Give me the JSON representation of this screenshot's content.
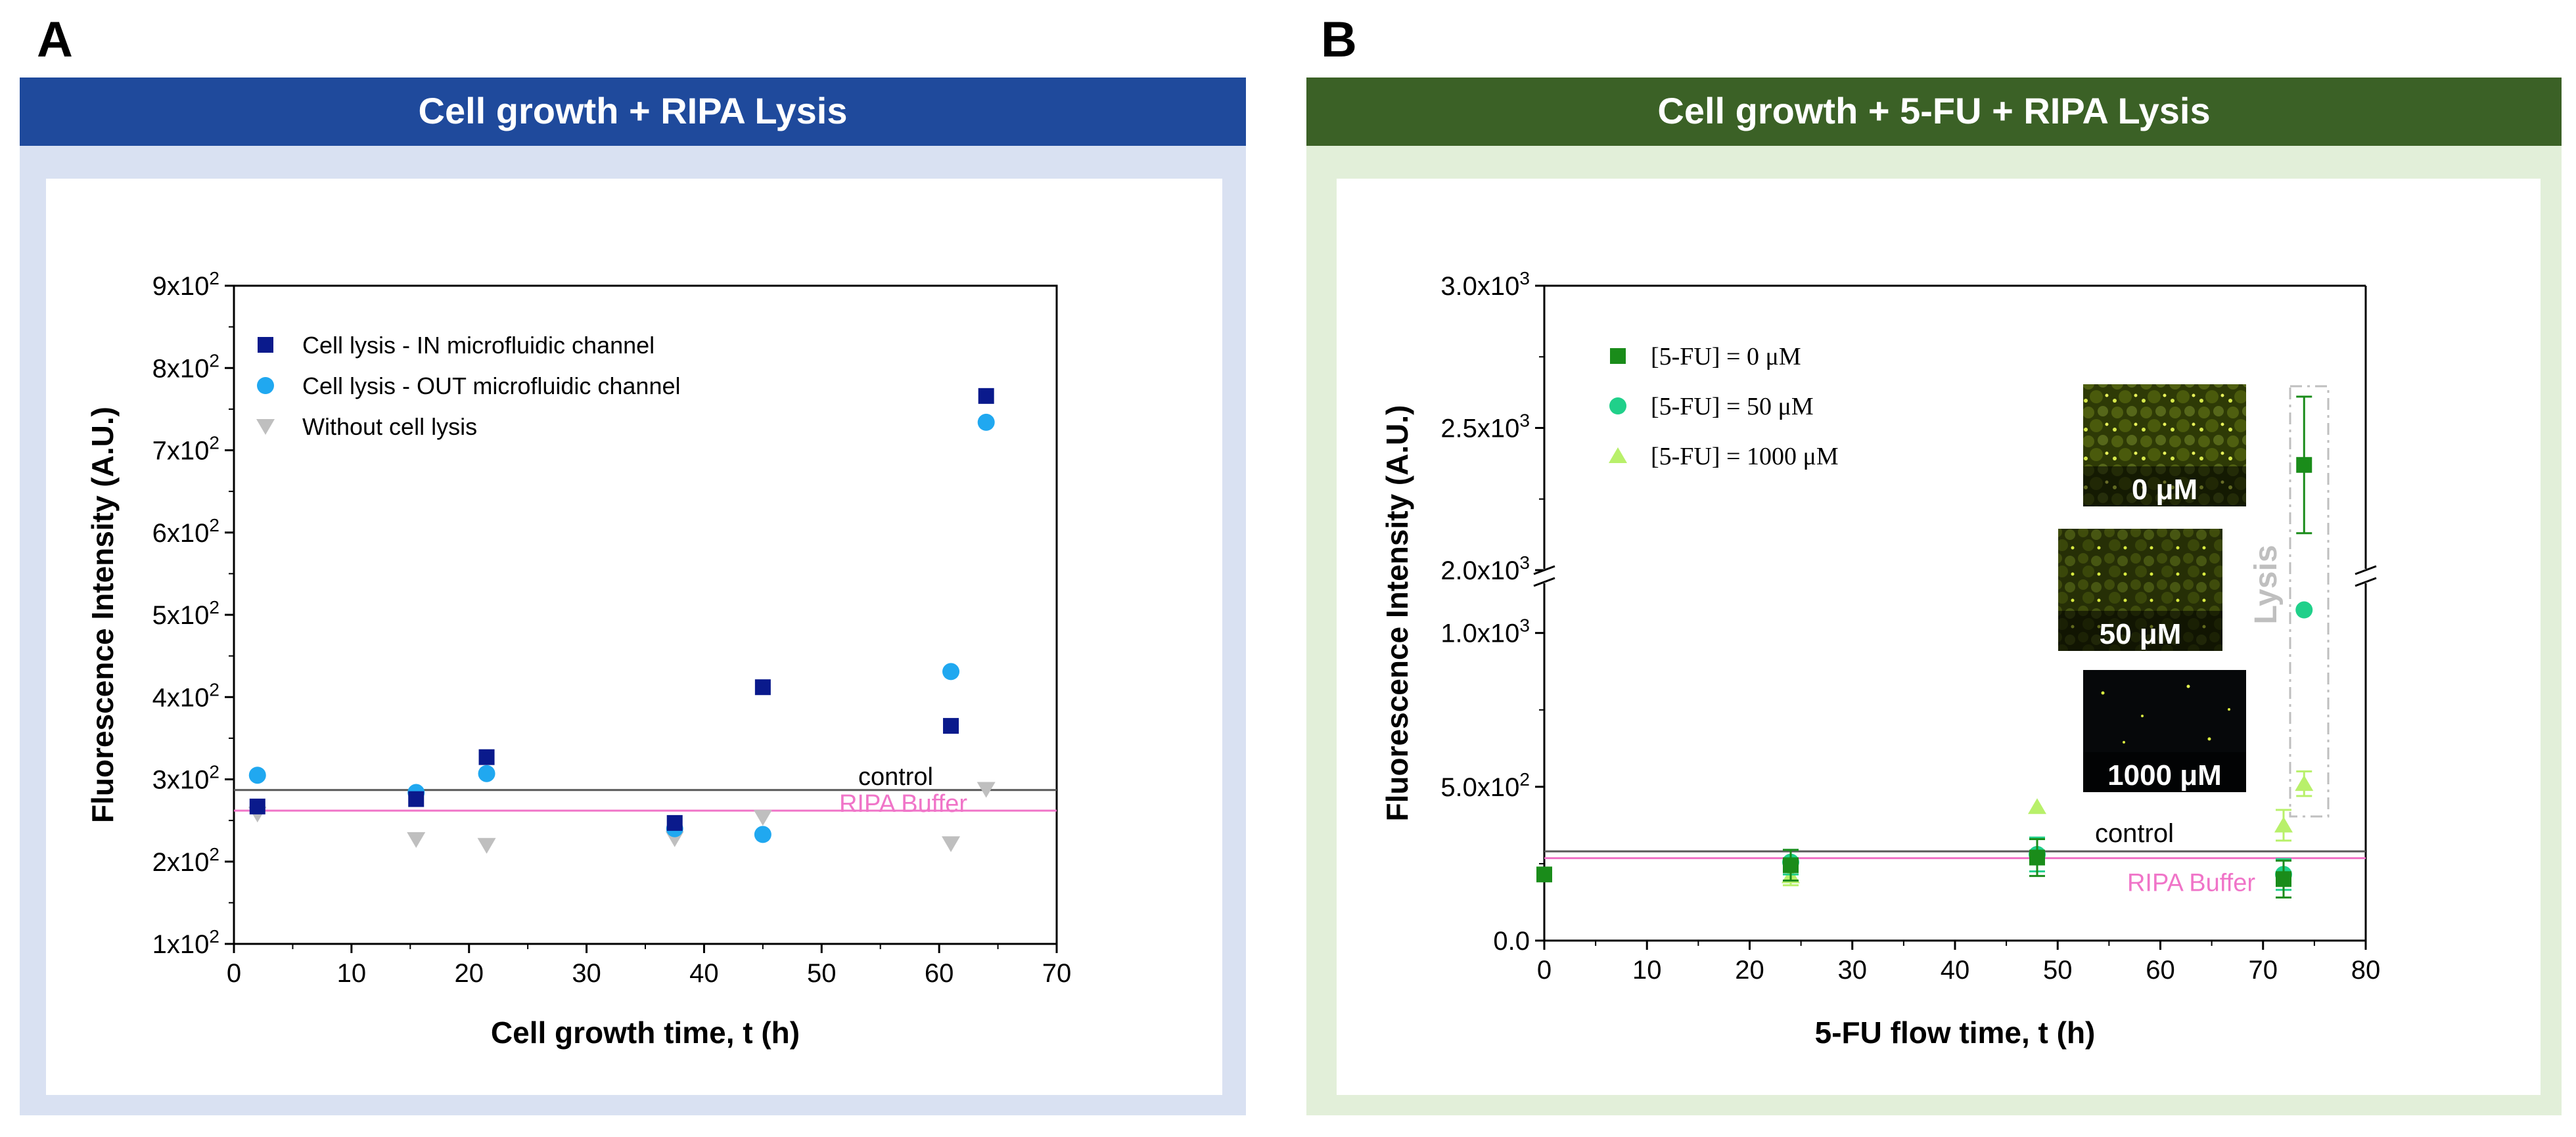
{
  "colors": {
    "panelA_header": "#1f4a9c",
    "panelA_frame": "#d9e1f2",
    "panelB_header": "#3b6126",
    "panelB_frame": "#e2efd9",
    "control_line": "#595959",
    "ripa_line": "#f074c8",
    "ripa_text": "#f074c8",
    "lysis_label": "#bfbfbf",
    "A_in": "#0a1a8c",
    "A_out": "#20a8f0",
    "A_without": "#bfbfbf",
    "B_0": "#1a8c1a",
    "B_50": "#20d08a",
    "B_1000": "#b8f06a"
  },
  "panel_a": {
    "letter": "A",
    "header": "Cell growth + RIPA Lysis"
  },
  "panel_b": {
    "letter": "B",
    "header": "Cell growth + 5-FU + RIPA Lysis",
    "inset_labels": [
      "0 μM",
      "50 μM",
      "1000 μM"
    ],
    "lysis_label": "Lysis"
  },
  "chart_data": [
    {
      "type": "scatter",
      "panel": "A",
      "xlabel": "Cell growth time, t (h)",
      "ylabel": "Fluorescence Intensity (A.U.)",
      "xlim": [
        0,
        70
      ],
      "ylim": [
        100,
        900
      ],
      "xticks": [
        0,
        10,
        20,
        30,
        40,
        50,
        60,
        70
      ],
      "yticks": [
        {
          "value": 100,
          "mant": "1x10",
          "exp": "2"
        },
        {
          "value": 200,
          "mant": "2x10",
          "exp": "2"
        },
        {
          "value": 300,
          "mant": "3x10",
          "exp": "2"
        },
        {
          "value": 400,
          "mant": "4x10",
          "exp": "2"
        },
        {
          "value": 500,
          "mant": "5x10",
          "exp": "2"
        },
        {
          "value": 600,
          "mant": "6x10",
          "exp": "2"
        },
        {
          "value": 700,
          "mant": "7x10",
          "exp": "2"
        },
        {
          "value": 800,
          "mant": "8x10",
          "exp": "2"
        },
        {
          "value": 900,
          "mant": "9x10",
          "exp": "2"
        }
      ],
      "hlines": [
        {
          "name": "control",
          "label": "control",
          "value": 287
        },
        {
          "name": "ripa",
          "label": "RIPA Buffer",
          "value": 262
        }
      ],
      "series": [
        {
          "name": "Cell lysis - IN microfluidic channel",
          "marker": "square",
          "colorKey": "A_in",
          "points": [
            [
              2,
              267
            ],
            [
              15.5,
              276
            ],
            [
              21.5,
              327
            ],
            [
              37.5,
              247
            ],
            [
              45,
              412
            ],
            [
              61,
              365
            ],
            [
              64,
              766
            ]
          ]
        },
        {
          "name": "Cell lysis - OUT microfluidic channel",
          "marker": "circle",
          "colorKey": "A_out",
          "points": [
            [
              2,
              305
            ],
            [
              15.5,
              284
            ],
            [
              21.5,
              307
            ],
            [
              37.5,
              240
            ],
            [
              45,
              233
            ],
            [
              61,
              431
            ],
            [
              64,
              734
            ]
          ]
        },
        {
          "name": "Without cell lysis",
          "marker": "triangle-down",
          "colorKey": "A_without",
          "points": [
            [
              2,
              258
            ],
            [
              15.5,
              227
            ],
            [
              21.5,
              220
            ],
            [
              37.5,
              228
            ],
            [
              45,
              254
            ],
            [
              61,
              222
            ],
            [
              64,
              288
            ]
          ]
        }
      ]
    },
    {
      "type": "scatter",
      "panel": "B",
      "xlabel": "5-FU flow time, t (h)",
      "ylabel": "Fluorescence Intensity (A.U.)",
      "xlim": [
        0,
        80
      ],
      "ylim_lower": [
        0,
        1200
      ],
      "ylim_upper": [
        2000,
        3000
      ],
      "axis_break": true,
      "xticks": [
        0,
        10,
        20,
        30,
        40,
        50,
        60,
        70,
        80
      ],
      "yticks": [
        {
          "value": 0,
          "main": "0.0"
        },
        {
          "value": 500,
          "mant": "5.0x10",
          "exp": "2"
        },
        {
          "value": 1000,
          "mant": "1.0x10",
          "exp": "3"
        },
        {
          "value": 2000,
          "mant": "2.0x10",
          "exp": "3"
        },
        {
          "value": 2500,
          "mant": "2.5x10",
          "exp": "3"
        },
        {
          "value": 3000,
          "mant": "3.0x10",
          "exp": "3"
        }
      ],
      "hlines": [
        {
          "name": "control",
          "label": "control",
          "value": 290
        },
        {
          "name": "ripa",
          "label": "RIPA Buffer",
          "value": 268
        }
      ],
      "series": [
        {
          "name": "[5-FU] = 0 ",
          "unit": "μM",
          "marker": "square",
          "colorKey": "B_0",
          "points": [
            [
              0,
              215,
              0
            ],
            [
              24,
              245,
              50
            ],
            [
              48,
              270,
              60
            ],
            [
              72,
              200,
              60
            ],
            [
              74,
              2370,
              240
            ]
          ]
        },
        {
          "name": "[5-FU] = 50 ",
          "unit": "μM",
          "marker": "circle",
          "colorKey": "B_50",
          "points": [
            [
              24,
              255,
              40
            ],
            [
              48,
              280,
              55
            ],
            [
              72,
              215,
              50
            ],
            [
              74,
              1075,
              0
            ]
          ]
        },
        {
          "name": "[5-FU] = 1000 ",
          "unit": "μM",
          "marker": "triangle-up",
          "colorKey": "B_1000",
          "points": [
            [
              24,
              210,
              30
            ],
            [
              48,
              435,
              0
            ],
            [
              72,
              375,
              50
            ],
            [
              74,
              510,
              40
            ]
          ]
        }
      ]
    }
  ]
}
